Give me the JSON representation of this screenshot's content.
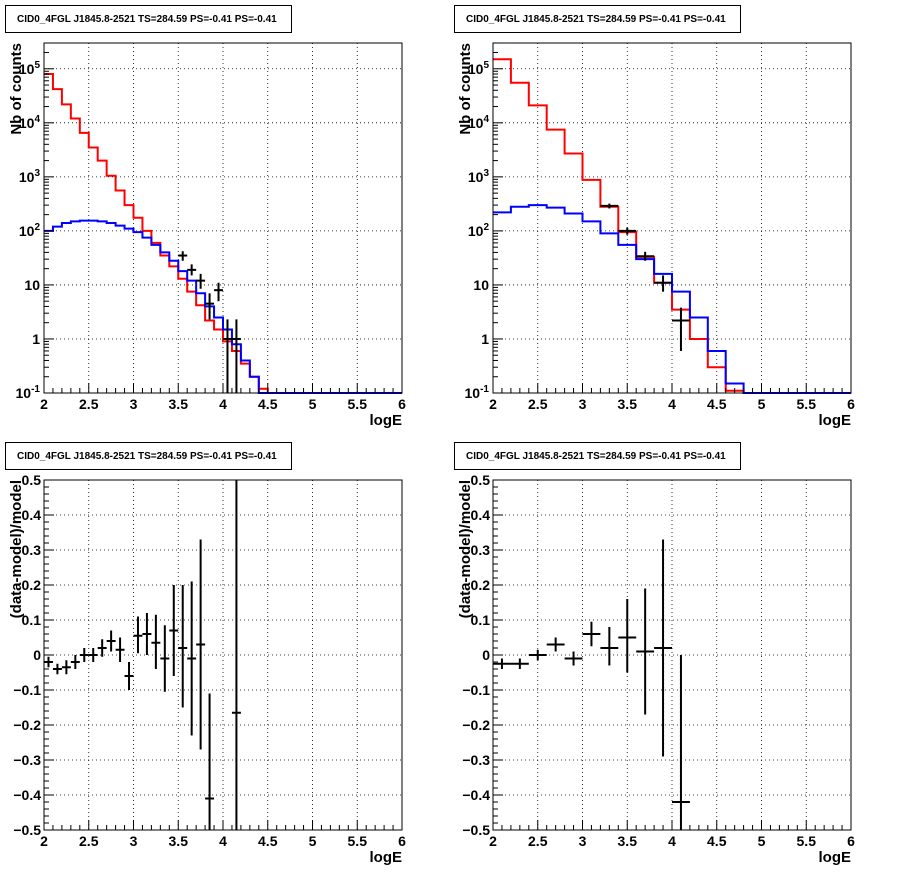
{
  "panels": [
    {
      "title": "CID0_4FGL J1845.8-2521 TS=284.59 PS=-0.41 PS=-0.41",
      "xlabel": "logE",
      "ylabel": "Nb of counts"
    },
    {
      "title": "CID0_4FGL J1845.8-2521 TS=284.59 PS=-0.41 PS=-0.41",
      "xlabel": "logE",
      "ylabel": "Nb of counts"
    },
    {
      "title": "CID0_4FGL J1845.8-2521 TS=284.59 PS=-0.41 PS=-0.41",
      "xlabel": "logE",
      "ylabel": "(data-model)/model"
    },
    {
      "title": "CID0_4FGL J1845.8-2521 TS=284.59 PS=-0.41 PS=-0.41",
      "xlabel": "logE",
      "ylabel": "(data-model)/model"
    }
  ],
  "chart_data": [
    {
      "type": "histogram",
      "title": "CID0_4FGL J1845.8-2521 TS=284.59 PS=-0.41 PS=-0.41",
      "xlabel": "logE",
      "ylabel": "Nb of counts",
      "xlim": [
        2,
        6
      ],
      "ylim": [
        0.1,
        300000
      ],
      "yscale": "log",
      "grid": true,
      "xticks": [
        "2",
        "2.5",
        "3",
        "3.5",
        "4",
        "4.5",
        "5",
        "5.5",
        "6"
      ],
      "yticks": [
        "10^-1",
        "1",
        "10",
        "10^2",
        "10^3",
        "10^4",
        "10^5"
      ],
      "bin_edges": [
        2.0,
        2.1,
        2.2,
        2.3,
        2.4,
        2.5,
        2.6,
        2.7,
        2.8,
        2.9,
        3.0,
        3.1,
        3.2,
        3.3,
        3.4,
        3.5,
        3.6,
        3.7,
        3.8,
        3.9,
        4.0,
        4.1,
        4.2,
        4.3,
        4.4,
        4.5,
        4.6,
        4.7,
        4.8,
        4.9,
        5.0,
        5.1,
        5.2,
        5.3,
        5.4,
        5.5,
        5.6,
        5.7,
        5.8,
        5.9,
        6.0
      ],
      "series": [
        {
          "color": "#ff0000",
          "values": [
            80000,
            42000,
            22000,
            12000,
            6500,
            3500,
            2000,
            1050,
            560,
            300,
            175,
            100,
            60,
            35,
            22,
            13,
            7.5,
            4.2,
            2.2,
            1.5,
            0.9,
            0.6,
            0.35,
            0.2,
            0.12,
            0.1,
            0.1,
            0.1,
            0.1,
            0.1,
            0.1,
            0.1,
            0.1,
            0.1,
            0.1,
            0.1,
            0.1,
            0.1,
            0.1,
            0.1
          ]
        },
        {
          "color": "#0000ff",
          "values": [
            100,
            120,
            140,
            150,
            155,
            155,
            150,
            140,
            125,
            110,
            95,
            75,
            55,
            40,
            28,
            18,
            12,
            7,
            4,
            2.5,
            1.5,
            0.8,
            0.4,
            0.2,
            0.1,
            0.1,
            0.1,
            0.1,
            0.1,
            0.1,
            0.1,
            0.1,
            0.1,
            0.1,
            0.1,
            0.1,
            0.1,
            0.1,
            0.1,
            0.1
          ]
        }
      ],
      "points": [
        {
          "x": 3.55,
          "y": 35,
          "xerr": 0.05,
          "ylo": 28,
          "yhi": 42
        },
        {
          "x": 3.65,
          "y": 19,
          "xerr": 0.05,
          "ylo": 15,
          "yhi": 24
        },
        {
          "x": 3.75,
          "y": 12,
          "xerr": 0.05,
          "ylo": 8.5,
          "yhi": 16
        },
        {
          "x": 3.85,
          "y": 4.5,
          "xerr": 0.05,
          "ylo": 2.3,
          "yhi": 7
        },
        {
          "x": 3.95,
          "y": 8,
          "xerr": 0.05,
          "ylo": 5,
          "yhi": 11
        },
        {
          "x": 4.05,
          "y": 1,
          "xerr": 0.05,
          "ylo": 0.1,
          "yhi": 2.3
        },
        {
          "x": 4.15,
          "y": 1,
          "xerr": 0.05,
          "ylo": 0.1,
          "yhi": 2.3
        }
      ]
    },
    {
      "type": "histogram",
      "title": "CID0_4FGL J1845.8-2521 TS=284.59 PS=-0.41 PS=-0.41",
      "xlabel": "logE",
      "ylabel": "Nb of counts",
      "xlim": [
        2,
        6
      ],
      "ylim": [
        0.1,
        300000
      ],
      "yscale": "log",
      "grid": true,
      "xticks": [
        "2",
        "2.5",
        "3",
        "3.5",
        "4",
        "4.5",
        "5",
        "5.5",
        "6"
      ],
      "yticks": [
        "10^-1",
        "1",
        "10",
        "10^2",
        "10^3",
        "10^4",
        "10^5"
      ],
      "bin_edges": [
        2.0,
        2.2,
        2.4,
        2.6,
        2.8,
        3.0,
        3.2,
        3.4,
        3.6,
        3.8,
        4.0,
        4.2,
        4.4,
        4.6,
        4.8,
        5.0,
        5.2,
        5.4,
        5.6,
        5.8,
        6.0
      ],
      "series": [
        {
          "color": "#ff0000",
          "values": [
            150000,
            55000,
            21000,
            7500,
            2700,
            880,
            280,
            95,
            33,
            11,
            3.5,
            1.0,
            0.3,
            0.11,
            0.1,
            0.1,
            0.1,
            0.1,
            0.1,
            0.1
          ]
        },
        {
          "color": "#0000ff",
          "values": [
            220,
            280,
            300,
            270,
            210,
            150,
            90,
            55,
            30,
            16,
            7.5,
            2.5,
            0.6,
            0.15,
            0.1,
            0.1,
            0.1,
            0.1,
            0.1,
            0.1
          ]
        }
      ],
      "points": [
        {
          "x": 3.3,
          "y": 290,
          "xerr": 0.1,
          "ylo": 260,
          "yhi": 320
        },
        {
          "x": 3.5,
          "y": 100,
          "xerr": 0.1,
          "ylo": 85,
          "yhi": 115
        },
        {
          "x": 3.7,
          "y": 34,
          "xerr": 0.1,
          "ylo": 28,
          "yhi": 41
        },
        {
          "x": 3.9,
          "y": 11,
          "xerr": 0.1,
          "ylo": 7.5,
          "yhi": 15
        },
        {
          "x": 4.1,
          "y": 2.2,
          "xerr": 0.1,
          "ylo": 0.6,
          "yhi": 3.8
        }
      ]
    },
    {
      "type": "scatter",
      "title": "CID0_4FGL J1845.8-2521 TS=284.59 PS=-0.41 PS=-0.41",
      "xlabel": "logE",
      "ylabel": "(data-model)/model",
      "xlim": [
        2,
        6
      ],
      "ylim": [
        -0.5,
        0.5
      ],
      "grid": true,
      "xticks": [
        "2",
        "2.5",
        "3",
        "3.5",
        "4",
        "4.5",
        "5",
        "5.5",
        "6"
      ],
      "yticks": [
        "-0.5",
        "-0.4",
        "-0.3",
        "-0.2",
        "-0.1",
        "0",
        "0.1",
        "0.2",
        "0.3",
        "0.4",
        "0.5"
      ],
      "points": [
        {
          "x": 2.05,
          "y": -0.02,
          "xerr": 0.05,
          "ylo": -0.035,
          "yhi": -0.005
        },
        {
          "x": 2.15,
          "y": -0.04,
          "xerr": 0.05,
          "ylo": -0.055,
          "yhi": -0.025
        },
        {
          "x": 2.25,
          "y": -0.035,
          "xerr": 0.05,
          "ylo": -0.055,
          "yhi": -0.015
        },
        {
          "x": 2.35,
          "y": -0.02,
          "xerr": 0.05,
          "ylo": -0.04,
          "yhi": 0.0
        },
        {
          "x": 2.45,
          "y": 0.0,
          "xerr": 0.05,
          "ylo": -0.02,
          "yhi": 0.02
        },
        {
          "x": 2.55,
          "y": 0.0,
          "xerr": 0.05,
          "ylo": -0.02,
          "yhi": 0.02
        },
        {
          "x": 2.65,
          "y": 0.02,
          "xerr": 0.05,
          "ylo": -0.005,
          "yhi": 0.045
        },
        {
          "x": 2.75,
          "y": 0.04,
          "xerr": 0.05,
          "ylo": 0.01,
          "yhi": 0.07
        },
        {
          "x": 2.85,
          "y": 0.015,
          "xerr": 0.05,
          "ylo": -0.02,
          "yhi": 0.05
        },
        {
          "x": 2.95,
          "y": -0.06,
          "xerr": 0.05,
          "ylo": -0.1,
          "yhi": -0.02
        },
        {
          "x": 3.05,
          "y": 0.055,
          "xerr": 0.05,
          "ylo": 0.005,
          "yhi": 0.11
        },
        {
          "x": 3.15,
          "y": 0.06,
          "xerr": 0.05,
          "ylo": 0.0,
          "yhi": 0.12
        },
        {
          "x": 3.25,
          "y": 0.035,
          "xerr": 0.05,
          "ylo": -0.04,
          "yhi": 0.115
        },
        {
          "x": 3.35,
          "y": -0.01,
          "xerr": 0.05,
          "ylo": -0.105,
          "yhi": 0.085
        },
        {
          "x": 3.45,
          "y": 0.07,
          "xerr": 0.05,
          "ylo": -0.06,
          "yhi": 0.2
        },
        {
          "x": 3.55,
          "y": 0.02,
          "xerr": 0.05,
          "ylo": -0.15,
          "yhi": 0.2
        },
        {
          "x": 3.65,
          "y": -0.01,
          "xerr": 0.05,
          "ylo": -0.23,
          "yhi": 0.21
        },
        {
          "x": 3.75,
          "y": 0.03,
          "xerr": 0.05,
          "ylo": -0.27,
          "yhi": 0.33
        },
        {
          "x": 3.85,
          "y": -0.41,
          "xerr": 0.05,
          "ylo": -0.5,
          "yhi": -0.11
        },
        {
          "x": 4.15,
          "y": -0.165,
          "xerr": 0.05,
          "ylo": -0.5,
          "yhi": 0.5
        }
      ]
    },
    {
      "type": "scatter",
      "title": "CID0_4FGL J1845.8-2521 TS=284.59 PS=-0.41 PS=-0.41",
      "xlabel": "logE",
      "ylabel": "(data-model)/model",
      "xlim": [
        2,
        6
      ],
      "ylim": [
        -0.5,
        0.5
      ],
      "grid": true,
      "xticks": [
        "2",
        "2.5",
        "3",
        "3.5",
        "4",
        "4.5",
        "5",
        "5.5",
        "6"
      ],
      "yticks": [
        "-0.5",
        "-0.4",
        "-0.3",
        "-0.2",
        "-0.1",
        "0",
        "0.1",
        "0.2",
        "0.3",
        "0.4",
        "0.5"
      ],
      "points": [
        {
          "x": 2.1,
          "y": -0.025,
          "xerr": 0.1,
          "ylo": -0.04,
          "yhi": -0.01
        },
        {
          "x": 2.3,
          "y": -0.025,
          "xerr": 0.1,
          "ylo": -0.04,
          "yhi": -0.01
        },
        {
          "x": 2.5,
          "y": 0.0,
          "xerr": 0.1,
          "ylo": -0.015,
          "yhi": 0.015
        },
        {
          "x": 2.7,
          "y": 0.03,
          "xerr": 0.1,
          "ylo": 0.01,
          "yhi": 0.05
        },
        {
          "x": 2.9,
          "y": -0.01,
          "xerr": 0.1,
          "ylo": -0.03,
          "yhi": 0.01
        },
        {
          "x": 3.1,
          "y": 0.06,
          "xerr": 0.1,
          "ylo": 0.025,
          "yhi": 0.095
        },
        {
          "x": 3.3,
          "y": 0.02,
          "xerr": 0.1,
          "ylo": -0.03,
          "yhi": 0.08
        },
        {
          "x": 3.5,
          "y": 0.05,
          "xerr": 0.1,
          "ylo": -0.05,
          "yhi": 0.16
        },
        {
          "x": 3.7,
          "y": 0.01,
          "xerr": 0.1,
          "ylo": -0.17,
          "yhi": 0.19
        },
        {
          "x": 3.9,
          "y": 0.02,
          "xerr": 0.1,
          "ylo": -0.29,
          "yhi": 0.33
        },
        {
          "x": 4.1,
          "y": -0.42,
          "xerr": 0.1,
          "ylo": -0.5,
          "yhi": 0.0
        }
      ]
    }
  ]
}
